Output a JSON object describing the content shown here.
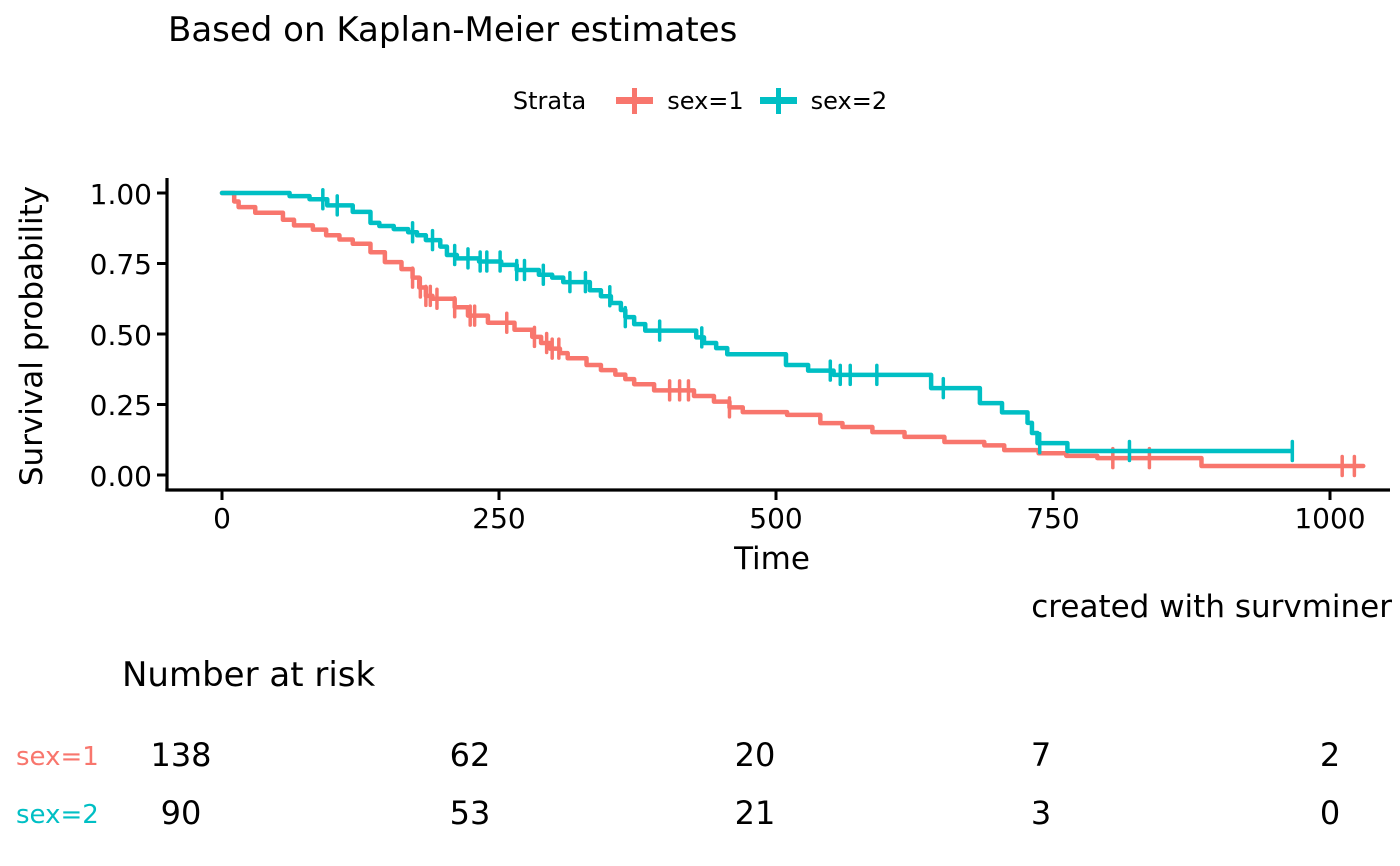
{
  "title": "Based on Kaplan-Meier estimates",
  "legend": {
    "title": "Strata",
    "items": [
      {
        "label": "sex=1",
        "color": "#F8766D"
      },
      {
        "label": "sex=2",
        "color": "#00BFC4"
      }
    ]
  },
  "axes": {
    "y_label": "Survival probability",
    "x_label": "Time",
    "y_tick_labels": [
      "1.00",
      "0.75",
      "0.50",
      "0.25",
      "0.00"
    ],
    "x_tick_labels": [
      "0",
      "250",
      "500",
      "750",
      "1000"
    ]
  },
  "caption": "created with survminer",
  "risk_table": {
    "title": "Number at risk",
    "rows": [
      {
        "label": "sex=1",
        "color": "#F8766D",
        "values": [
          "138",
          "62",
          "20",
          "7",
          "2"
        ]
      },
      {
        "label": "sex=2",
        "color": "#00BFC4",
        "values": [
          "90",
          "53",
          "21",
          "3",
          "0"
        ]
      }
    ]
  },
  "chart_data": {
    "type": "line",
    "subtype": "kaplan-meier-step",
    "title": "Based on Kaplan-Meier estimates",
    "xlabel": "Time",
    "ylabel": "Survival probability",
    "xlim": [
      0,
      1065
    ],
    "ylim": [
      0,
      1
    ],
    "x_ticks": [
      0,
      250,
      500,
      750,
      1000
    ],
    "y_ticks": [
      1.0,
      0.75,
      0.5,
      0.25,
      0.0
    ],
    "grid": false,
    "legend_position": "top",
    "series": [
      {
        "name": "sex=1",
        "color": "#F8766D",
        "n_at_risk": [
          138,
          62,
          20,
          7,
          2
        ],
        "points": [
          [
            0,
            1.0
          ],
          [
            11,
            0.97
          ],
          [
            15,
            0.95
          ],
          [
            30,
            0.93
          ],
          [
            55,
            0.905
          ],
          [
            65,
            0.885
          ],
          [
            82,
            0.87
          ],
          [
            94,
            0.85
          ],
          [
            106,
            0.835
          ],
          [
            118,
            0.82
          ],
          [
            134,
            0.79
          ],
          [
            147,
            0.755
          ],
          [
            162,
            0.73
          ],
          [
            172,
            0.7
          ],
          [
            178,
            0.665
          ],
          [
            184,
            0.635
          ],
          [
            190,
            0.625
          ],
          [
            210,
            0.595
          ],
          [
            222,
            0.565
          ],
          [
            240,
            0.54
          ],
          [
            264,
            0.515
          ],
          [
            280,
            0.49
          ],
          [
            288,
            0.468
          ],
          [
            296,
            0.448
          ],
          [
            305,
            0.432
          ],
          [
            312,
            0.414
          ],
          [
            329,
            0.39
          ],
          [
            342,
            0.372
          ],
          [
            355,
            0.356
          ],
          [
            364,
            0.34
          ],
          [
            372,
            0.322
          ],
          [
            390,
            0.3
          ],
          [
            426,
            0.28
          ],
          [
            444,
            0.26
          ],
          [
            458,
            0.24
          ],
          [
            470,
            0.223
          ],
          [
            510,
            0.213
          ],
          [
            540,
            0.184
          ],
          [
            560,
            0.17
          ],
          [
            587,
            0.152
          ],
          [
            616,
            0.135
          ],
          [
            652,
            0.117
          ],
          [
            688,
            0.105
          ],
          [
            706,
            0.088
          ],
          [
            737,
            0.077
          ],
          [
            762,
            0.068
          ],
          [
            790,
            0.06
          ],
          [
            884,
            0.032
          ],
          [
            1030,
            0.032
          ]
        ],
        "censor_times": [
          172,
          179,
          184,
          188,
          194,
          210,
          224,
          228,
          257,
          282,
          293,
          298,
          304,
          404,
          413,
          421,
          458,
          804,
          837,
          1011,
          1022
        ]
      },
      {
        "name": "sex=2",
        "color": "#00BFC4",
        "n_at_risk": [
          90,
          53,
          21,
          3,
          0
        ],
        "points": [
          [
            0,
            1.0
          ],
          [
            61,
            0.989
          ],
          [
            79,
            0.978
          ],
          [
            95,
            0.956
          ],
          [
            118,
            0.933
          ],
          [
            134,
            0.894
          ],
          [
            142,
            0.883
          ],
          [
            155,
            0.872
          ],
          [
            168,
            0.861
          ],
          [
            176,
            0.85
          ],
          [
            184,
            0.833
          ],
          [
            197,
            0.81
          ],
          [
            203,
            0.78
          ],
          [
            212,
            0.768
          ],
          [
            232,
            0.757
          ],
          [
            252,
            0.745
          ],
          [
            266,
            0.727
          ],
          [
            286,
            0.71
          ],
          [
            298,
            0.7
          ],
          [
            308,
            0.684
          ],
          [
            332,
            0.655
          ],
          [
            342,
            0.634
          ],
          [
            351,
            0.61
          ],
          [
            360,
            0.585
          ],
          [
            364,
            0.56
          ],
          [
            372,
            0.535
          ],
          [
            382,
            0.512
          ],
          [
            428,
            0.488
          ],
          [
            435,
            0.468
          ],
          [
            446,
            0.45
          ],
          [
            456,
            0.428
          ],
          [
            509,
            0.39
          ],
          [
            529,
            0.37
          ],
          [
            552,
            0.355
          ],
          [
            640,
            0.308
          ],
          [
            651,
            0.308
          ],
          [
            684,
            0.255
          ],
          [
            704,
            0.222
          ],
          [
            727,
            0.185
          ],
          [
            731,
            0.149
          ],
          [
            736,
            0.113
          ],
          [
            763,
            0.085
          ],
          [
            965,
            0.085
          ]
        ],
        "censor_times": [
          91,
          104,
          172,
          190,
          210,
          222,
          233,
          239,
          251,
          266,
          273,
          290,
          314,
          328,
          350,
          364,
          395,
          433,
          549,
          558,
          567,
          591,
          651,
          738,
          819,
          966
        ]
      }
    ]
  }
}
